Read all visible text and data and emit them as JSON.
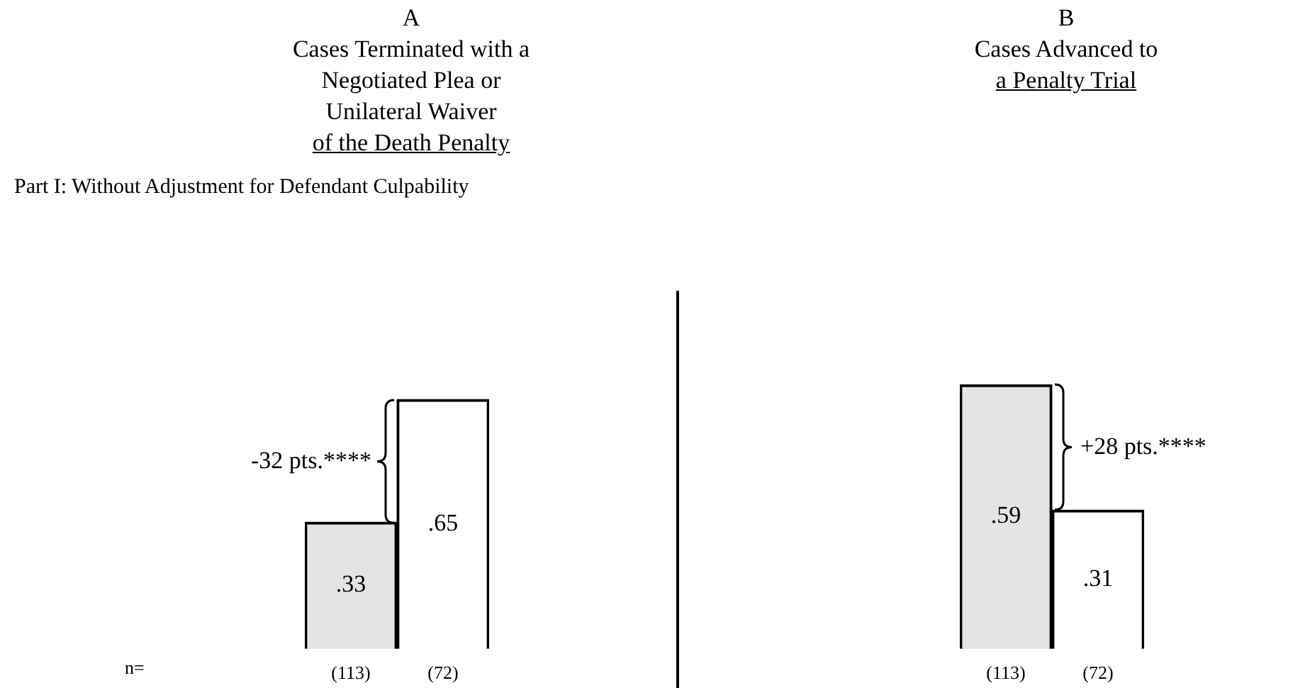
{
  "chart_data": [
    {
      "type": "bar",
      "title": "A\nCases Terminated with a\nNegotiated Plea or\nUnilateral Waiver\nof the Death Penalty",
      "subtitle": "Part I: Without Adjustment for Defendant Culpability",
      "categories": [
        "(113)",
        "(72)"
      ],
      "values": [
        0.33,
        0.65
      ],
      "value_labels": [
        ".33",
        ".65"
      ],
      "colors": [
        "#e4e4e4",
        "#ffffff"
      ],
      "annotations": [
        "-32 pts.****",
        "n="
      ]
    },
    {
      "type": "bar",
      "title": "B\nCases Advanced to\na Penalty Trial",
      "categories": [
        "(113)",
        "(72)"
      ],
      "values": [
        0.59,
        0.31
      ],
      "value_labels": [
        ".59",
        ".31"
      ],
      "colors": [
        "#e4e4e4",
        "#ffffff"
      ],
      "annotations": [
        "+28 pts.****"
      ]
    }
  ]
}
